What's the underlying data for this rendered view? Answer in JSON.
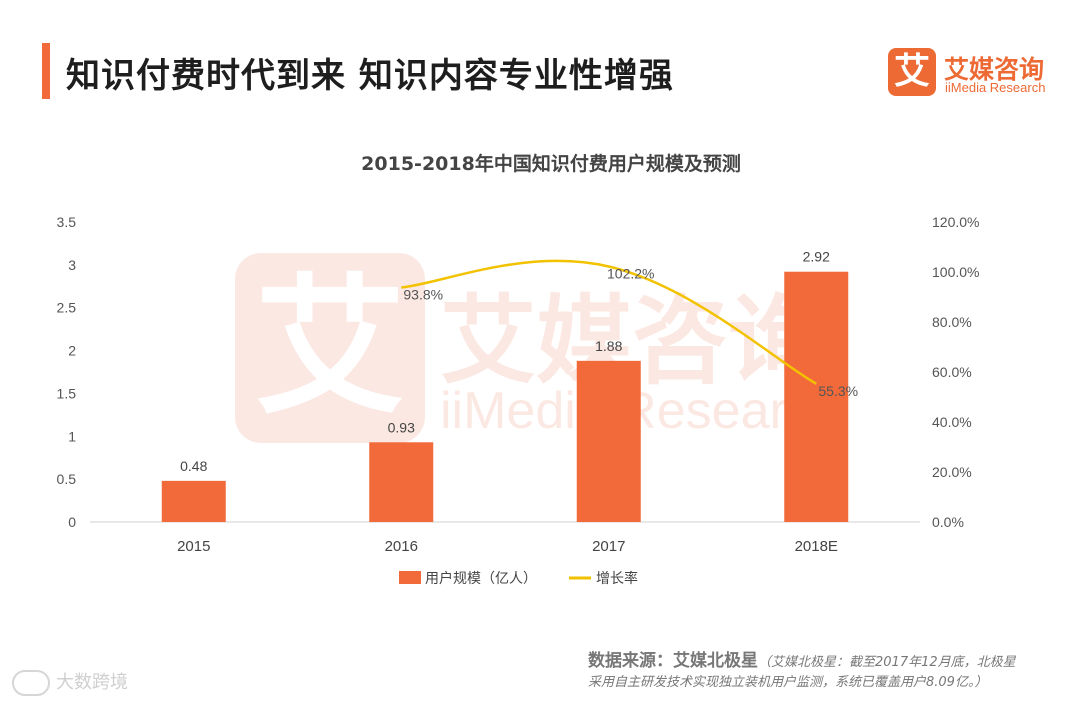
{
  "header": {
    "title": "知识付费时代到来  知识内容专业性增强",
    "accent_color": "#f26a3a"
  },
  "logo": {
    "mark_text": "艾",
    "name_cn": "艾媒咨询",
    "name_en": "iiMedia Research",
    "brand_color": "#ee6a35"
  },
  "watermark": {
    "mark_text": "艾",
    "name_cn": "艾媒咨询",
    "name_en": "iiMedia Research"
  },
  "chart_data": {
    "type": "bar",
    "title": "2015-2018年中国知识付费用户规模及预测",
    "categories": [
      "2015",
      "2016",
      "2017",
      "2018E"
    ],
    "series": [
      {
        "name": "用户规模（亿人）",
        "type": "bar",
        "axis": "left",
        "values": [
          0.48,
          0.93,
          1.88,
          2.92
        ],
        "labels": [
          "0.48",
          "0.93",
          "1.88",
          "2.92"
        ],
        "color": "#f26a3a"
      },
      {
        "name": "增长率",
        "type": "line",
        "axis": "right",
        "values": [
          null,
          93.8,
          102.2,
          55.3
        ],
        "labels": [
          "",
          "93.8%",
          "102.2%",
          "55.3%"
        ],
        "color": "#f2c200"
      }
    ],
    "ylim_left": [
      0,
      3.5
    ],
    "yticks_left": [
      "0",
      "0.5",
      "1",
      "1.5",
      "2",
      "2.5",
      "3",
      "3.5"
    ],
    "ylim_right": [
      0,
      120
    ],
    "yticks_right": [
      "0.0%",
      "20.0%",
      "40.0%",
      "60.0%",
      "80.0%",
      "100.0%",
      "120.0%"
    ],
    "grid": false,
    "legend_position": "bottom"
  },
  "source": {
    "label": "数据来源：艾媒北极星",
    "note_line1": "（艾媒北极星：截至2017年12月底，北极星",
    "note_line2": "采用自主研发技术实现独立装机用户监测，系统已覆盖用户8.09亿。）"
  },
  "corner_watermark": {
    "text": "大数跨境"
  }
}
